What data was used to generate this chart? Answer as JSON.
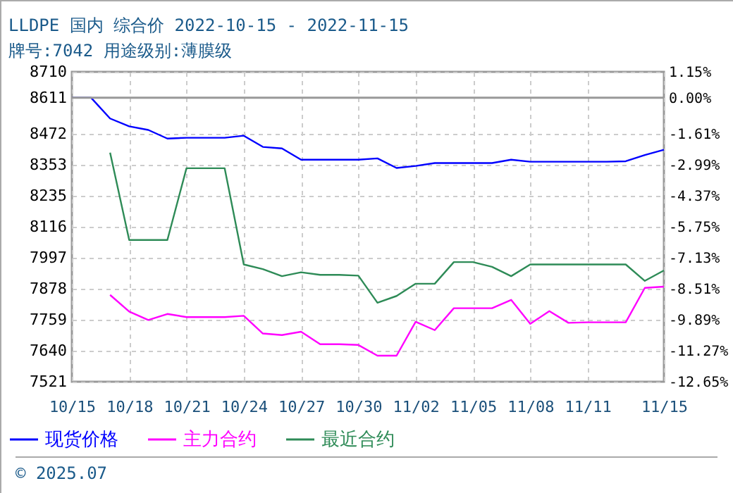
{
  "chart_data": {
    "type": "line",
    "title": "LLDPE 国内 综合价 2022-10-15 - 2022-11-15",
    "subtitle": "牌号:7042 用途级别:薄膜级",
    "x": [
      "2022-10-15",
      "2022-10-16",
      "2022-10-17",
      "2022-10-18",
      "2022-10-19",
      "2022-10-20",
      "2022-10-21",
      "2022-10-22",
      "2022-10-23",
      "2022-10-24",
      "2022-10-25",
      "2022-10-26",
      "2022-10-27",
      "2022-10-28",
      "2022-10-29",
      "2022-10-30",
      "2022-10-31",
      "2022-11-01",
      "2022-11-02",
      "2022-11-03",
      "2022-11-04",
      "2022-11-05",
      "2022-11-06",
      "2022-11-07",
      "2022-11-08",
      "2022-11-09",
      "2022-11-10",
      "2022-11-11",
      "2022-11-12",
      "2022-11-13",
      "2022-11-14",
      "2022-11-15"
    ],
    "series": [
      {
        "name": "现货价格",
        "color": "#0000ff",
        "values": [
          8611,
          8611,
          8531,
          8501,
          8487,
          8454,
          8457,
          8457,
          8457,
          8465,
          8422,
          8416,
          8373,
          8373,
          8373,
          8373,
          8378,
          8341,
          8349,
          8360,
          8360,
          8360,
          8360,
          8373,
          8365,
          8365,
          8365,
          8365,
          8365,
          8367,
          8391,
          8411
        ]
      },
      {
        "name": "主力合约",
        "color": "#ff00ff",
        "values": [
          null,
          null,
          7854,
          7790,
          7758,
          7781,
          7769,
          7769,
          7769,
          7774,
          7706,
          7700,
          7713,
          7665,
          7665,
          7662,
          7621,
          7621,
          7751,
          7719,
          7803,
          7803,
          7803,
          7835,
          7743,
          7792,
          7747,
          7749,
          7749,
          7749,
          7881,
          7886
        ]
      },
      {
        "name": "最近合约",
        "color": "#2e8b57",
        "values": [
          null,
          null,
          8400,
          8065,
          8065,
          8065,
          8340,
          8340,
          8340,
          7971,
          7953,
          7926,
          7941,
          7931,
          7931,
          7928,
          7824,
          7850,
          7897,
          7897,
          7980,
          7980,
          7962,
          7926,
          7971,
          7971,
          7971,
          7971,
          7971,
          7971,
          7908,
          7948
        ]
      }
    ],
    "xlim": [
      "2022-10-15",
      "2022-11-15"
    ],
    "xticks": [
      {
        "value": "2022-10-15",
        "label": "10/15"
      },
      {
        "value": "2022-10-18",
        "label": "10/18"
      },
      {
        "value": "2022-10-21",
        "label": "10/21"
      },
      {
        "value": "2022-10-24",
        "label": "10/24"
      },
      {
        "value": "2022-10-27",
        "label": "10/27"
      },
      {
        "value": "2022-10-30",
        "label": "10/30"
      },
      {
        "value": "2022-11-02",
        "label": "11/02"
      },
      {
        "value": "2022-11-05",
        "label": "11/05"
      },
      {
        "value": "2022-11-08",
        "label": "11/08"
      },
      {
        "value": "2022-11-11",
        "label": "11/11"
      },
      {
        "value": "2022-11-15",
        "label": "11/15"
      }
    ],
    "ylim": [
      7521,
      8710
    ],
    "yticks": [
      7521,
      7640,
      7759,
      7878,
      7997,
      8116,
      8235,
      8353,
      8472,
      8611,
      8710
    ],
    "y2lim": [
      -12.65,
      1.15
    ],
    "y2ticks": [
      {
        "value": -12.65,
        "label": "-12.65%"
      },
      {
        "value": -11.27,
        "label": "-11.27%"
      },
      {
        "value": -9.89,
        "label": "-9.89%"
      },
      {
        "value": -8.51,
        "label": "-8.51%"
      },
      {
        "value": -7.13,
        "label": "-7.13%"
      },
      {
        "value": -5.75,
        "label": "-5.75%"
      },
      {
        "value": -4.37,
        "label": "-4.37%"
      },
      {
        "value": -2.99,
        "label": "-2.99%"
      },
      {
        "value": -1.61,
        "label": "-1.61%"
      },
      {
        "value": 0,
        "label": "0.00%"
      },
      {
        "value": 1.15,
        "label": "1.15%"
      }
    ],
    "ref_lines": [
      {
        "axis": "y2",
        "value": 0,
        "color": "#999999"
      }
    ],
    "grid": true,
    "legend": "bottom",
    "line_style": "solid",
    "annotations": [
      "© 2025.07"
    ]
  }
}
